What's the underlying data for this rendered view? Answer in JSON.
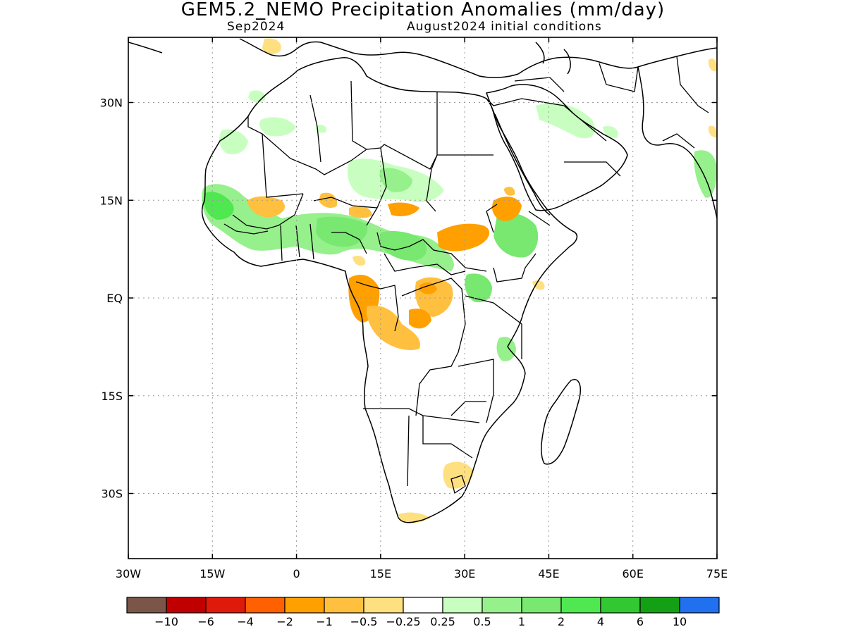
{
  "title": "GEM5.2_NEMO Precipitation Anomalies (mm/day)",
  "subtitle_left": "Sep2024",
  "subtitle_right": "August2024 initial conditions",
  "map": {
    "lon_range": [
      -30,
      75
    ],
    "lat_range": [
      -40,
      40
    ],
    "x_ticks": [
      {
        "lon": -30,
        "label": "30W"
      },
      {
        "lon": -15,
        "label": "15W"
      },
      {
        "lon": 0,
        "label": "0"
      },
      {
        "lon": 15,
        "label": "15E"
      },
      {
        "lon": 30,
        "label": "30E"
      },
      {
        "lon": 45,
        "label": "45E"
      },
      {
        "lon": 60,
        "label": "60E"
      },
      {
        "lon": 75,
        "label": "75E"
      }
    ],
    "y_ticks": [
      {
        "lat": 30,
        "label": "30N"
      },
      {
        "lat": 15,
        "label": "15N"
      },
      {
        "lat": 0,
        "label": "EQ"
      },
      {
        "lat": -15,
        "label": "15S"
      },
      {
        "lat": -30,
        "label": "30S"
      }
    ],
    "gridlines": true
  },
  "colorbar": {
    "colors": [
      "#7a5548",
      "#c00000",
      "#e01a0a",
      "#ff6000",
      "#ffa000",
      "#ffc040",
      "#ffe080",
      "#ffffff",
      "#c8ffc0",
      "#96f08c",
      "#78e870",
      "#50e850",
      "#32c832",
      "#14a014",
      "#2070f0"
    ],
    "labels": [
      "−10",
      "−6",
      "−4",
      "−2",
      "−1",
      "−0.5",
      "−0.25",
      "0.25",
      "0.5",
      "1",
      "2",
      "4",
      "6",
      "10"
    ]
  },
  "anomaly_colors": {
    "dry_light": "#ffe080",
    "dry_mid": "#ffc040",
    "dry_strong": "#ffa000",
    "wet_light": "#c8ffc0",
    "wet_mid": "#96f08c",
    "wet_strong": "#78e870",
    "wet_heavy": "#50e850"
  }
}
